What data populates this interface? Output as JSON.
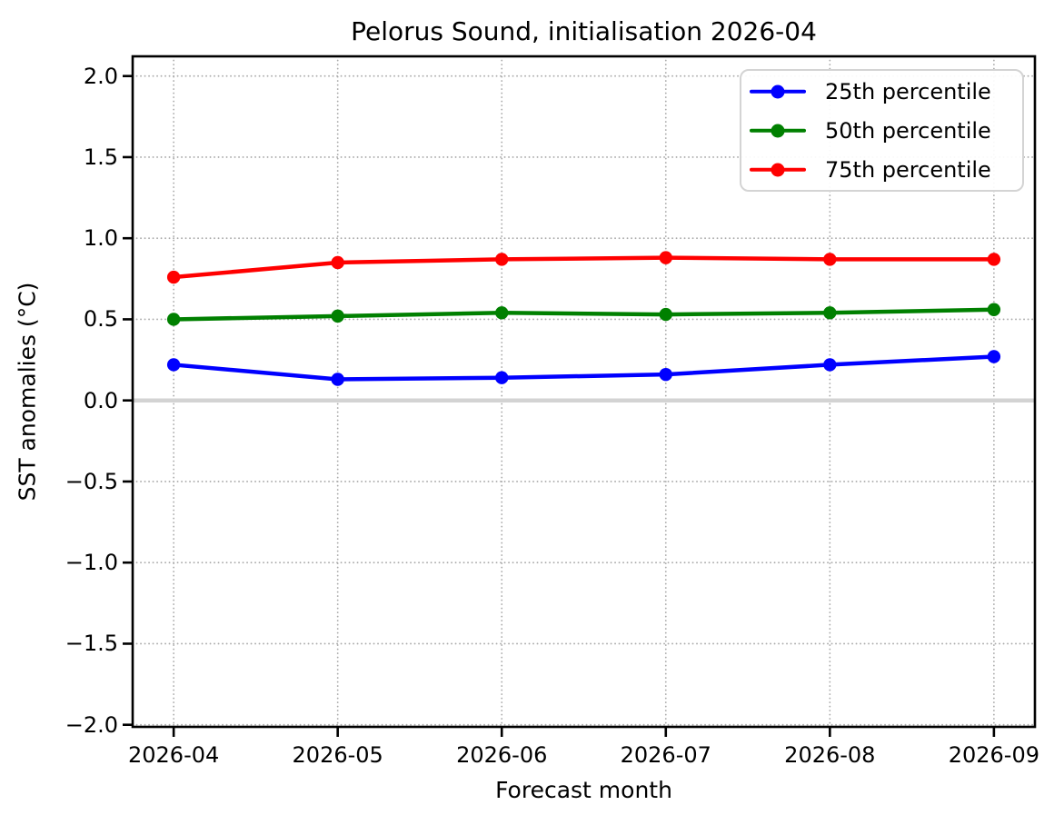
{
  "figure": {
    "background": "#ffffff"
  },
  "chart_data": {
    "type": "line",
    "title": "Pelorus Sound, initialisation 2026-04",
    "xlabel": "Forecast month",
    "ylabel": "SST anomalies (°C)",
    "categories": [
      "2026-04",
      "2026-05",
      "2026-06",
      "2026-07",
      "2026-08",
      "2026-09"
    ],
    "series": [
      {
        "name": "25th percentile",
        "color": "#0000ff",
        "values": [
          0.22,
          0.13,
          0.14,
          0.16,
          0.22,
          0.27
        ]
      },
      {
        "name": "50th percentile",
        "color": "#008000",
        "values": [
          0.5,
          0.52,
          0.54,
          0.53,
          0.54,
          0.56
        ]
      },
      {
        "name": "75th percentile",
        "color": "#ff0000",
        "values": [
          0.76,
          0.85,
          0.87,
          0.88,
          0.87,
          0.87
        ]
      }
    ],
    "yticks": [
      2.0,
      1.5,
      1.0,
      0.5,
      0.0,
      -0.5,
      -1.0,
      -1.5,
      -2.0
    ],
    "ytick_labels": [
      "2.0",
      "1.5",
      "1.0",
      "0.5",
      "0.0",
      "−0.5",
      "−1.0",
      "−1.5",
      "−2.0"
    ],
    "ylim": [
      -2.01,
      2.12
    ],
    "grid": "dotted",
    "grid_color": "#aaaaaa",
    "zero_line_color": "#d3d3d3",
    "spine_color": "#000000",
    "legend_position": "upper right"
  }
}
